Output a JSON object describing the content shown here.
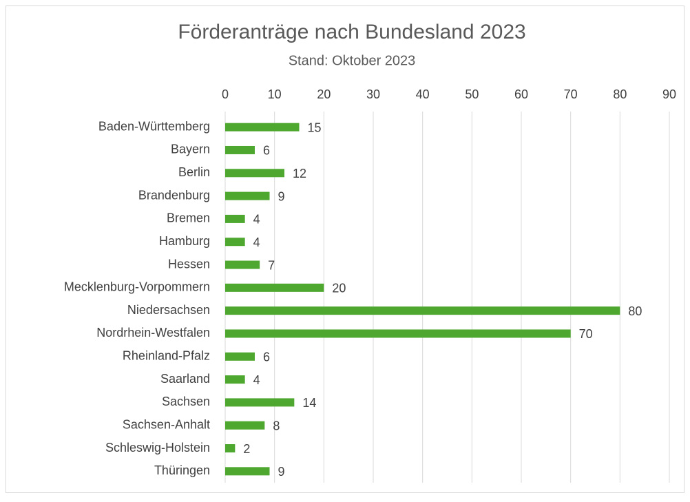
{
  "chart_data": {
    "type": "bar",
    "title": "Förderanträge nach Bundesland 2023",
    "subtitle": "Stand: Oktober 2023",
    "categories": [
      "Baden-Württemberg",
      "Bayern",
      "Berlin",
      "Brandenburg",
      "Bremen",
      "Hamburg",
      "Hessen",
      "Mecklenburg-Vorpommern",
      "Niedersachsen",
      "Nordrhein-Westfalen",
      "Rheinland-Pfalz",
      "Saarland",
      "Sachsen",
      "Sachsen-Anhalt",
      "Schleswig-Holstein",
      "Thüringen"
    ],
    "values": [
      15,
      6,
      12,
      9,
      4,
      4,
      7,
      20,
      80,
      70,
      6,
      4,
      14,
      8,
      2,
      9
    ],
    "color": "#4ea72e",
    "xlim": [
      0,
      90
    ],
    "xticks": [
      0,
      10,
      20,
      30,
      40,
      50,
      60,
      70,
      80,
      90
    ],
    "grid": true
  }
}
